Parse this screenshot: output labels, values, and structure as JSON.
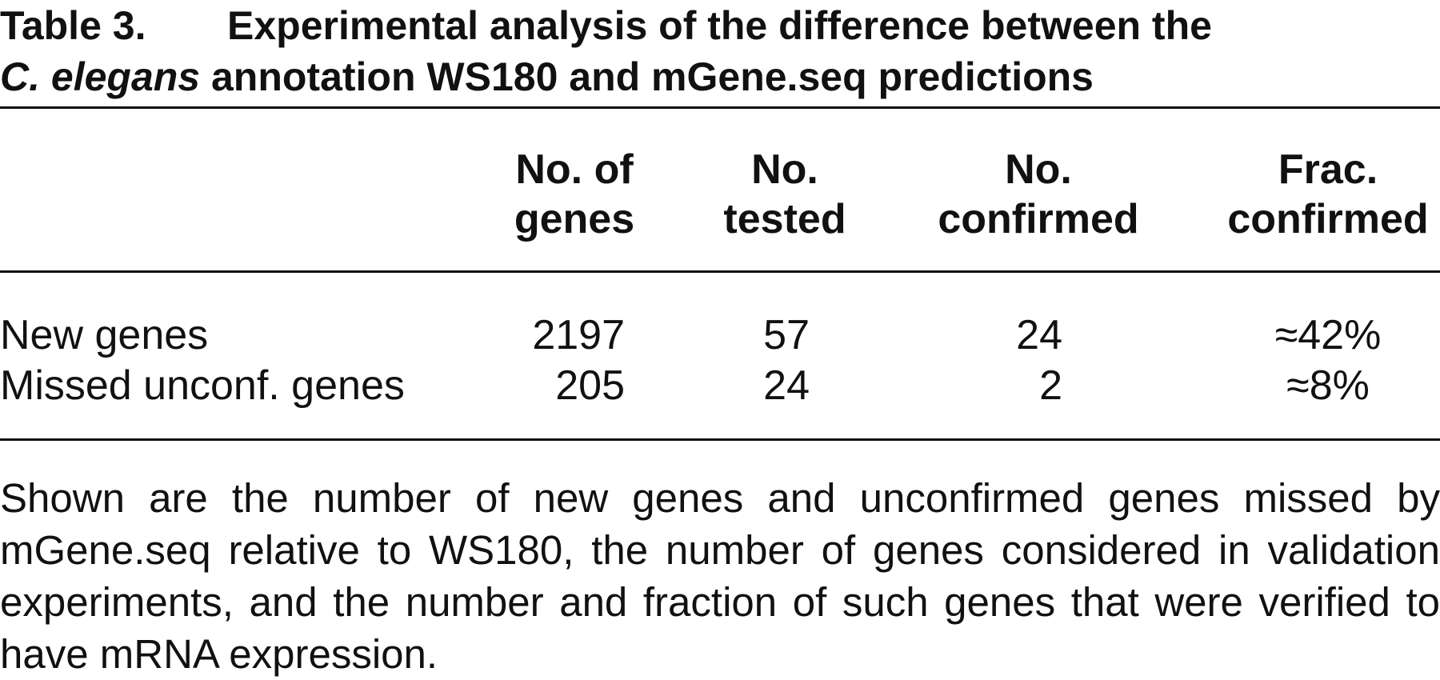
{
  "caption": {
    "label": "Table 3.",
    "title_parts": [
      "Experimental analysis of the difference between the",
      "C. elegans",
      " annotation WS180 and mGene.seq predictions"
    ]
  },
  "table": {
    "columns": [
      [
        "No. of",
        "genes"
      ],
      [
        "No.",
        "tested"
      ],
      [
        "No.",
        "confirmed"
      ],
      [
        "Frac.",
        "confirmed"
      ]
    ],
    "rows": [
      [
        "New genes",
        2197,
        57,
        24,
        "≈42%"
      ],
      [
        "Missed unconf. genes",
        205,
        24,
        2,
        "≈8%"
      ]
    ]
  },
  "footnote": "Shown are the number of new genes and unconfirmed genes missed by mGene.seq relative to WS180, the number of genes considered in validation experiments, and the number and fraction of such genes that were verified to have mRNA expression."
}
